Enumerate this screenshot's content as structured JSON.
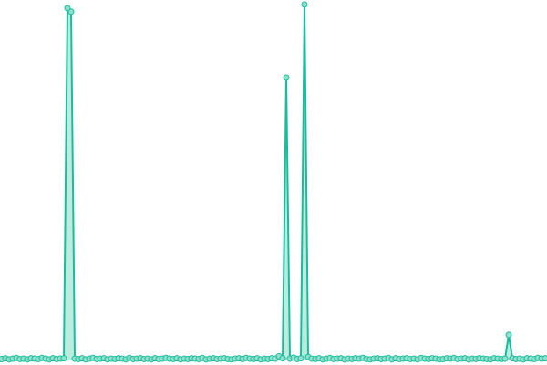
{
  "chart_data": {
    "type": "area",
    "title": "",
    "xlabel": "",
    "ylabel": "",
    "ylim": [
      0,
      100
    ],
    "grid": false,
    "legend": "none",
    "colors": {
      "line": "#1abc9c",
      "fill": "#8fe0cc",
      "marker_fill": "#8fe0cc",
      "marker_stroke": "#1abc9c"
    },
    "series": [
      {
        "values": [
          0.4,
          0.6,
          0.3,
          0.5,
          0.7,
          0.4,
          0.5,
          0.3,
          0.6,
          0.5,
          0.4,
          0.7,
          0.5,
          0.3,
          0.6,
          0.4,
          0.5,
          0.6,
          99,
          98,
          0.5,
          0.4,
          0.6,
          0.3,
          0.5,
          0.7,
          0.4,
          0.5,
          0.6,
          0.3,
          0.5,
          0.4,
          0.6,
          0.5,
          0.3,
          0.7,
          0.4,
          0.5,
          0.6,
          0.4,
          0.5,
          0.3,
          0.6,
          0.4,
          0.5,
          0.7,
          0.5,
          0.4,
          0.6,
          0.3,
          0.5,
          0.4,
          0.6,
          0.5,
          0.4,
          0.7,
          0.3,
          0.5,
          0.6,
          0.4,
          0.5,
          0.6,
          0.4,
          0.3,
          0.5,
          0.6,
          0.4,
          0.7,
          0.5,
          0.4,
          0.6,
          0.3,
          0.5,
          0.4,
          0.6,
          0.5,
          1.2,
          0.6,
          79.5,
          0.5,
          0.8,
          0.4,
          0.6,
          100,
          1.0,
          0.5,
          0.4,
          0.6,
          0.3,
          0.5,
          0.7,
          0.4,
          0.5,
          0.6,
          0.3,
          0.5,
          0.4,
          0.6,
          0.5,
          0.7,
          0.4,
          0.3,
          0.5,
          0.6,
          0.4,
          0.5,
          0.7,
          0.3,
          0.6,
          0.4,
          0.5,
          0.6,
          0.4,
          0.5,
          0.3,
          0.7,
          0.5,
          0.4,
          0.6,
          0.5,
          0.3,
          0.4,
          0.6,
          0.5,
          0.7,
          0.4,
          0.5,
          0.6,
          0.3,
          0.5,
          0.4,
          0.6,
          0.5,
          0.4,
          0.3,
          0.6,
          0.5,
          0.4,
          0.5,
          7.2,
          0.6,
          0.4,
          0.5,
          0.3,
          0.6,
          0.5,
          0.4,
          0.7,
          0.5,
          0.6
        ]
      }
    ]
  }
}
